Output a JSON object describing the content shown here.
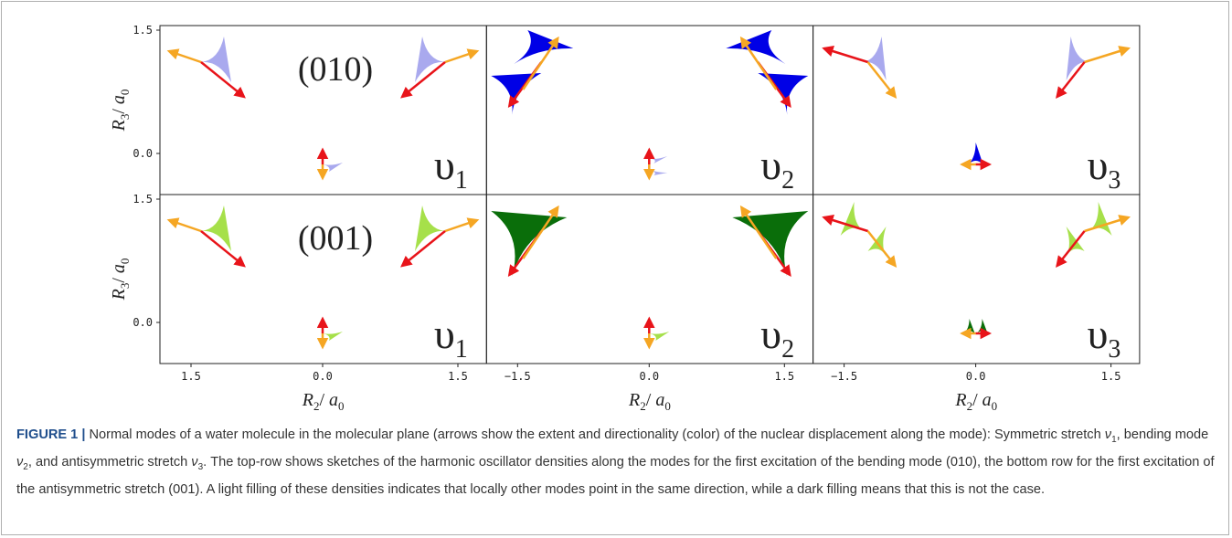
{
  "figure": {
    "rows": [
      {
        "label": "(010)",
        "yticks": [
          "1.5",
          "0.0"
        ]
      },
      {
        "label": "(001)",
        "yticks": [
          "1.5",
          "0.0"
        ]
      }
    ],
    "columns": [
      {
        "mode_symbol": "υ",
        "mode_index": "1",
        "xticks": [
          "1.5",
          "0.0",
          "1.5"
        ]
      },
      {
        "mode_symbol": "υ",
        "mode_index": "2",
        "xticks": [
          "−1.5",
          "0.0",
          "1.5"
        ]
      },
      {
        "mode_symbol": "υ",
        "mode_index": "3",
        "xticks": [
          "−1.5",
          "0.0",
          "1.5"
        ]
      }
    ],
    "y_label": {
      "var": "R",
      "var_sub": "3",
      "sep": "/ ",
      "unit": "a",
      "unit_sub": "0"
    },
    "x_label": {
      "var": "R",
      "var_sub": "2",
      "sep": "/ ",
      "unit": "a",
      "unit_sub": "0"
    }
  },
  "caption": {
    "label": "FIGURE 1 |",
    "parts": [
      " Normal modes of a water molecule in the molecular plane (arrows show the extent and directionality (color) of the nuclear displacement along the mode): Symmetric stretch ",
      "ν",
      "1",
      ", bending mode ",
      "ν",
      "2",
      ", and antisymmetric stretch ",
      "ν",
      "3",
      ". The top-row shows sketches of the harmonic oscillator densities along the modes for the first excitation of the bending mode (010), the bottom row for the first excitation of the antisymmetric stretch (001). A light filling of these densities indicates that locally other modes point in the same direction, while a dark filling means that this is not the case."
    ]
  }
}
